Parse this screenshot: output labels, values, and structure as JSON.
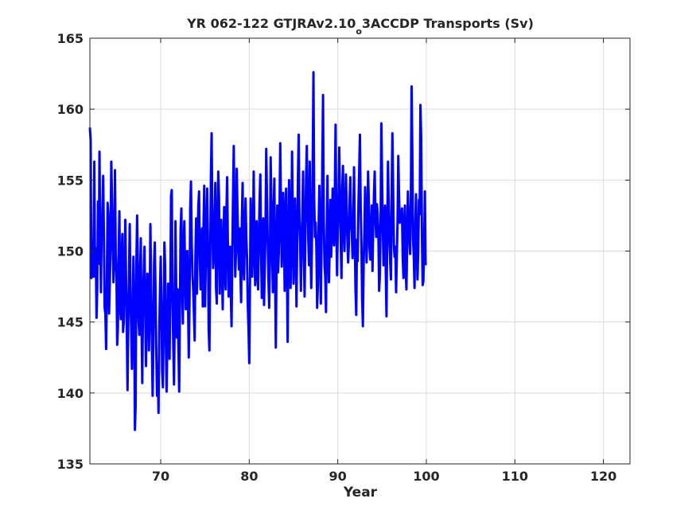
{
  "chart_data": {
    "type": "line",
    "title_main": "YR 062-122 GTJRAv2.10",
    "title_sub": "o",
    "title_rest": "3ACCDP Transports (Sv)",
    "xlabel": "Year",
    "ylabel": "",
    "xlim": [
      62,
      123
    ],
    "ylim": [
      135,
      165
    ],
    "xticks": [
      70,
      80,
      90,
      100,
      110,
      120
    ],
    "yticks": [
      135,
      140,
      145,
      150,
      155,
      160,
      165
    ],
    "grid": true,
    "line_color": "#0000ff",
    "series": [
      {
        "start_year": 62,
        "values_per_year": 12,
        "values": [
          158.7,
          157.8,
          148.1,
          150.7,
          148.2,
          150.5,
          156.3,
          148.2,
          150.2,
          145.3,
          147.4,
          153.5,
          149.1,
          157.0,
          150.8,
          147.1,
          151.9,
          152.6,
          155.3,
          151.2,
          146.0,
          145.6,
          143.1,
          147.7,
          153.4,
          152.6,
          145.6,
          147.8,
          150.6,
          156.3,
          153.7,
          150.2,
          147.8,
          149.2,
          155.7,
          149.8,
          148.5,
          143.4,
          144.7,
          149.9,
          152.8,
          146.0,
          145.2,
          149.3,
          151.2,
          144.3,
          145.1,
          148.8,
          152.2,
          148.1,
          144.7,
          140.2,
          144.8,
          148.3,
          151.9,
          146.8,
          144.5,
          141.7,
          145.6,
          149.6,
          146.6,
          137.4,
          139.1,
          149.0,
          152.5,
          149.2,
          145.0,
          144.1,
          148.2,
          150.9,
          144.7,
          140.7,
          146.4,
          148.5,
          150.3,
          146.1,
          141.9,
          145.7,
          148.4,
          147.8,
          143.0,
          145.7,
          151.9,
          147.1,
          143.8,
          139.8,
          143.3,
          149.1,
          150.6,
          146.9,
          142.9,
          139.8,
          141.9,
          138.6,
          144.4,
          147.2,
          149.6,
          146.1,
          141.6,
          140.4,
          145.1,
          150.6,
          148.9,
          143.3,
          140.1,
          144.0,
          147.7,
          145.0,
          142.4,
          147.3,
          153.9,
          154.3,
          146.8,
          143.4,
          140.6,
          145.5,
          152.1,
          147.2,
          143.9,
          147.3,
          143.3,
          140.1,
          146.1,
          151.6,
          153.0,
          147.4,
          144.9,
          150.2,
          152.1,
          148.7,
          145.9,
          149.3,
          150.0,
          146.5,
          142.5,
          146.3,
          153.0,
          154.9,
          150.7,
          148.3,
          147.3,
          145.6,
          143.7,
          149.5,
          152.3,
          147.0,
          150.5,
          153.2,
          154.2,
          149.7,
          147.3,
          148.9,
          151.6,
          146.1,
          151.8,
          154.6,
          146.1,
          148.8,
          152.1,
          154.4,
          150.7,
          144.4,
          143.0,
          149.1,
          155.2,
          158.3,
          152.2,
          148.8,
          149.7,
          152.2,
          154.8,
          147.4,
          146.3,
          151.8,
          155.6,
          153.8,
          147.0,
          150.1,
          152.2,
          148.9,
          145.9,
          150.2,
          153.1,
          148.5,
          147.3,
          152.6,
          155.2,
          150.6,
          146.8,
          149.1,
          150.3,
          147.0,
          144.7,
          149.9,
          153.9,
          157.4,
          152.1,
          148.2,
          149.9,
          155.8,
          153.1,
          150.4,
          148.7,
          151.6,
          148.3,
          146.4,
          152.2,
          154.8,
          149.0,
          148.0,
          151.3,
          153.7,
          151.0,
          149.5,
          146.2,
          144.5,
          142.1,
          147.9,
          153.7,
          151.3,
          148.2,
          150.7,
          155.6,
          150.7,
          147.6,
          149.3,
          152.1,
          148.6,
          147.3,
          150.7,
          153.6,
          155.4,
          150.0,
          146.7,
          149.8,
          152.3,
          146.2,
          148.5,
          151.4,
          157.2,
          153.8,
          150.8,
          148.0,
          146.0,
          149.1,
          156.6,
          153.4,
          150.0,
          147.1,
          152.8,
          155.1,
          148.7,
          143.2,
          149.1,
          153.2,
          148.5,
          149.8,
          152.9,
          157.6,
          153.0,
          148.9,
          151.1,
          154.1,
          151.3,
          147.2,
          152.7,
          154.4,
          149.4,
          143.6,
          150.0,
          155.0,
          152.1,
          147.4,
          150.6,
          157.0,
          152.1,
          147.7,
          150.4,
          153.7,
          150.3,
          146.1,
          150.8,
          155.3,
          158.2,
          152.3,
          150.6,
          147.2,
          150.3,
          152.8,
          155.6,
          149.7,
          146.8,
          151.4,
          155.1,
          157.4,
          153.3,
          150.8,
          149.0,
          156.3,
          150.2,
          147.4,
          150.9,
          156.0,
          162.6,
          153.7,
          151.0,
          152.0,
          150.2,
          146.0,
          147.6,
          151.7,
          154.6,
          149.8,
          146.3,
          151.1,
          156.0,
          161.0,
          152.2,
          149.0,
          148.2,
          145.7,
          151.4,
          155.3,
          150.2,
          147.8,
          150.3,
          153.6,
          149.6,
          151.4,
          154.4,
          151.1,
          150.4,
          154.3,
          158.9,
          152.0,
          148.3,
          151.5,
          154.0,
          157.3,
          153.1,
          150.6,
          148.1,
          154.4,
          156.0,
          151.8,
          150.0,
          152.4,
          155.4,
          153.2,
          150.8,
          149.2,
          150.5,
          153.6,
          155.2,
          152.0,
          151.3,
          149.5,
          152.4,
          155.9,
          151.0,
          147.3,
          145.5,
          150.8,
          149.3,
          153.3,
          155.7,
          158.2,
          153.1,
          150.5,
          146.6,
          144.7,
          149.0,
          151.3,
          154.5,
          152.2,
          149.2,
          151.3,
          155.6,
          153.5,
          150.2,
          149.4,
          151.4,
          153.2,
          148.6,
          151.6,
          154.0,
          155.6,
          152.5,
          151.0,
          153.3,
          152.7,
          151.3,
          147.2,
          148.3,
          152.0,
          159.0,
          155.1,
          151.6,
          149.0,
          151.6,
          153.2,
          148.6,
          145.4,
          151.4,
          156.3,
          153.5,
          150.8,
          149.2,
          148.0,
          154.2,
          158.3,
          154.4,
          150.4,
          149.6,
          150.3,
          147.1,
          149.6,
          152.2,
          156.7,
          153.8,
          152.0,
          152.1,
          152.4,
          153.0,
          149.5,
          148.1,
          152.1,
          153.2,
          148.7,
          147.3,
          150.7,
          154.2,
          152.3,
          150.8,
          149.8,
          153.4,
          161.6,
          157.1,
          150.9,
          149.6,
          147.4,
          151.7,
          154.0,
          150.6,
          148.0,
          150.0,
          153.6,
          152.6,
          160.3,
          158.0,
          151.3,
          147.6,
          147.9,
          150.3,
          154.2,
          149.0
        ]
      }
    ]
  }
}
